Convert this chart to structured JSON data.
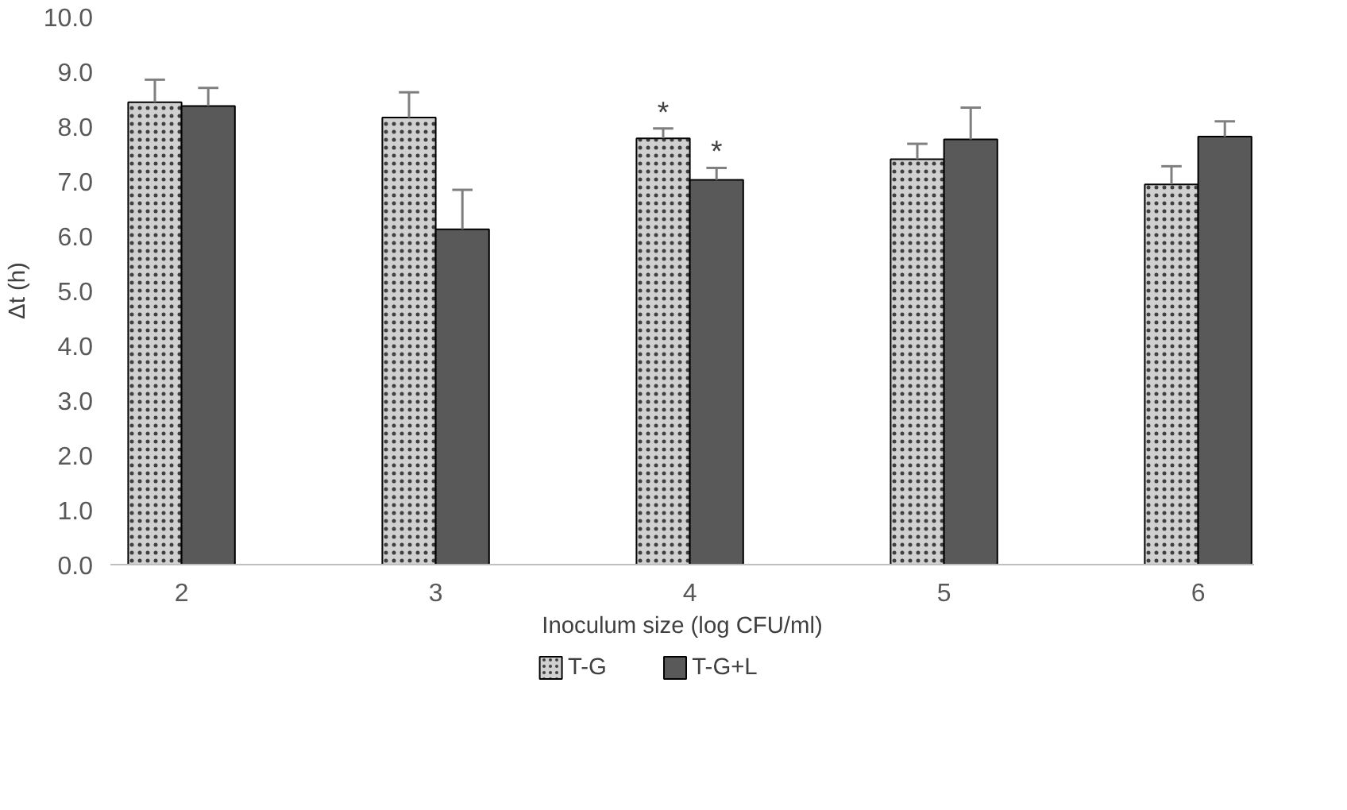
{
  "chart_data": {
    "type": "bar",
    "xlabel": "Inoculum size (log CFU/ml)",
    "ylabel": "Δt (h)",
    "categories": [
      "2",
      "3",
      "4",
      "5",
      "6"
    ],
    "series": [
      {
        "name": "T-G",
        "color": "#d0d0d0",
        "values": [
          8.44,
          8.16,
          7.78,
          7.4,
          6.94
        ],
        "errors": [
          [
            8.44,
            8.85
          ],
          [
            8.16,
            8.62
          ],
          [
            7.78,
            7.96
          ],
          [
            7.4,
            7.68
          ],
          [
            6.94,
            7.27
          ]
        ]
      },
      {
        "name": "T-G+L",
        "color": "#595959",
        "values": [
          8.37,
          6.12,
          7.02,
          7.76,
          7.81
        ],
        "errors": [
          [
            8.37,
            8.7
          ],
          [
            6.12,
            6.84
          ],
          [
            7.02,
            7.24
          ],
          [
            7.76,
            8.34
          ],
          [
            7.81,
            8.09
          ]
        ]
      }
    ],
    "annotations": [
      {
        "text": "*",
        "x": "4",
        "y": 7.96
      },
      {
        "text": "*",
        "x": "4",
        "y": 7.24
      }
    ],
    "ylim": [
      0,
      10
    ],
    "yticks": [
      {
        "value": 0,
        "label": "0.0"
      },
      {
        "value": 1,
        "label": "1.0"
      },
      {
        "value": 2,
        "label": "2.0"
      },
      {
        "value": 3,
        "label": "3.0"
      },
      {
        "value": 4,
        "label": "4.0"
      },
      {
        "value": 5,
        "label": "5.0"
      },
      {
        "value": 6,
        "label": "6.0"
      },
      {
        "value": 7,
        "label": "7.0"
      },
      {
        "value": 8,
        "label": "8.0"
      },
      {
        "value": 9,
        "label": "9.0"
      },
      {
        "value": 10,
        "label": "10.0"
      }
    ],
    "grid": false,
    "legend": "bottom"
  }
}
